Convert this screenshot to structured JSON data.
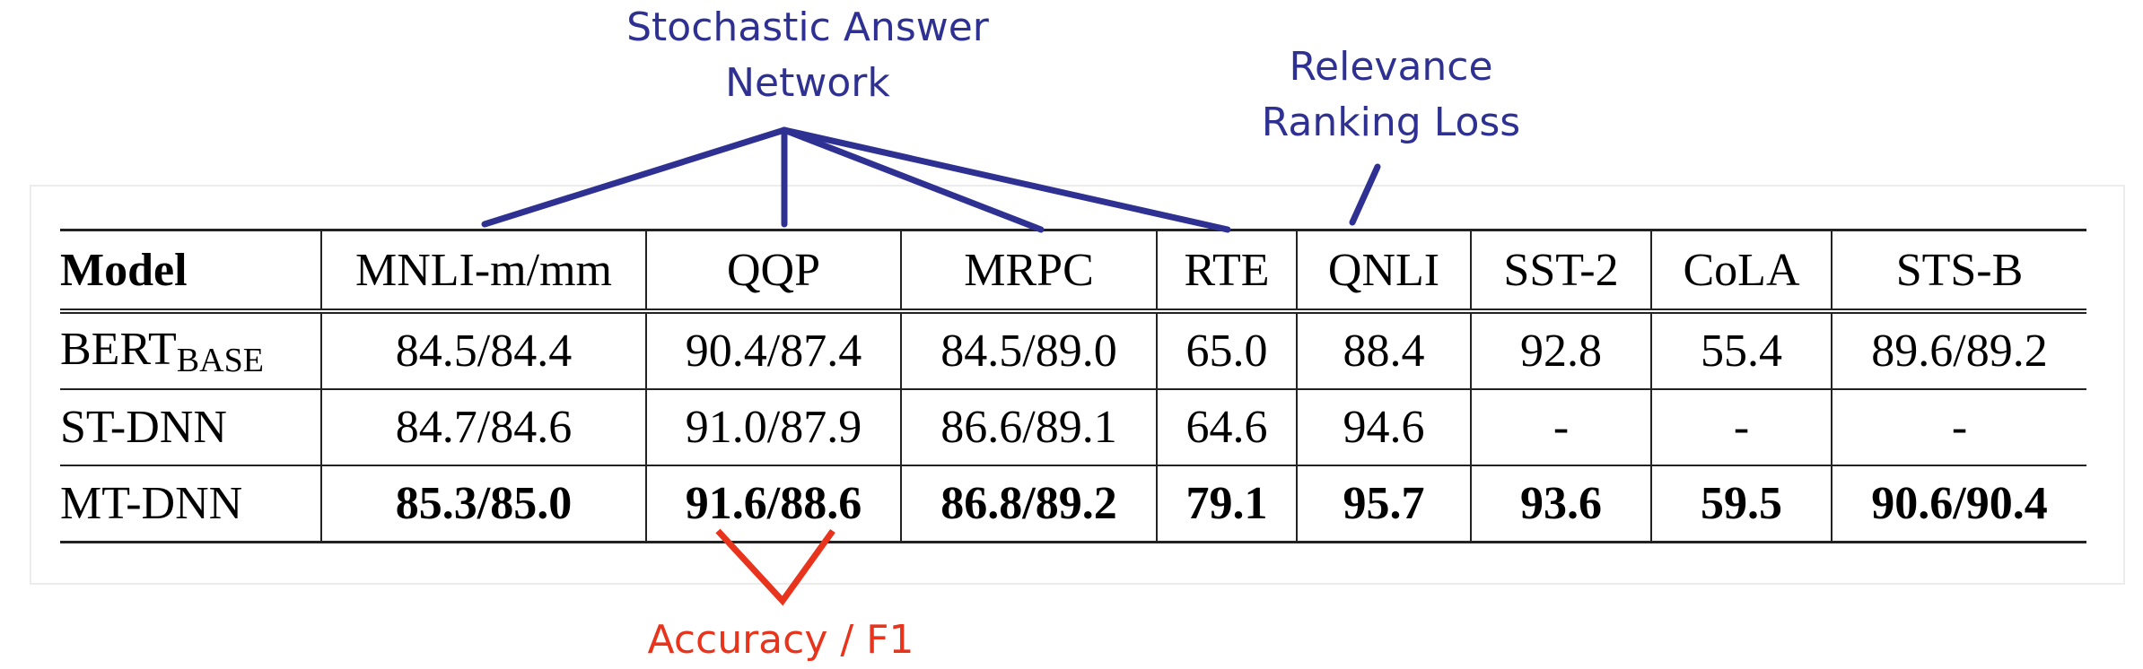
{
  "annotations": {
    "san_label_line1": "Stochastic Answer",
    "san_label_line2": "Network",
    "rrl_label_line1": "Relevance",
    "rrl_label_line2": "Ranking Loss",
    "acc_label": "Accuracy / F1",
    "colors": {
      "blue_annotation": "#2e3192",
      "red_annotation": "#e8341c"
    }
  },
  "table": {
    "header": [
      "Model",
      "MNLI-m/mm",
      "QQP",
      "MRPC",
      "RTE",
      "QNLI",
      "SST-2",
      "CoLA",
      "STS-B"
    ],
    "rows": [
      {
        "model": "BERT",
        "model_sub": "BASE",
        "bold": false,
        "values": [
          "84.5/84.4",
          "90.4/87.4",
          "84.5/89.0",
          "65.0",
          "88.4",
          "92.8",
          "55.4",
          "89.6/89.2"
        ]
      },
      {
        "model": "ST-DNN",
        "model_sub": "",
        "bold": false,
        "values": [
          "84.7/84.6",
          "91.0/87.9",
          "86.6/89.1",
          "64.6",
          "94.6",
          "-",
          "-",
          "-"
        ]
      },
      {
        "model": "MT-DNN",
        "model_sub": "",
        "bold": true,
        "values": [
          "85.3/85.0",
          "91.6/88.6",
          "86.8/89.2",
          "79.1",
          "95.7",
          "93.6",
          "59.5",
          "90.6/90.4"
        ]
      }
    ]
  }
}
